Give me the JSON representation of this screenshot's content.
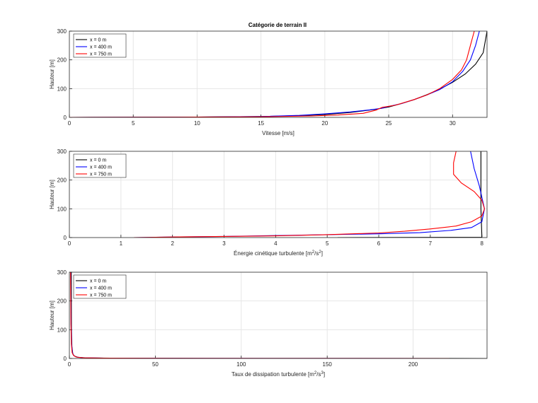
{
  "figure": {
    "title": "Catégorie de terrain II"
  },
  "chart_data": [
    {
      "type": "line",
      "title": "Catégorie de terrain II",
      "xlabel": "Vitesse   [m/s]",
      "ylabel": "Hauteur [m]",
      "xlim": [
        0,
        32.7
      ],
      "ylim": [
        0,
        300
      ],
      "xticks": [
        0,
        5,
        10,
        15,
        20,
        25,
        30
      ],
      "yticks": [
        0,
        100,
        200,
        300
      ],
      "grid": true,
      "legend": "top-left",
      "series": [
        {
          "name": "x = 0 m",
          "color": "#000000",
          "x": [
            0,
            10,
            15,
            18,
            20,
            22,
            24,
            25,
            26,
            27,
            28,
            29,
            30,
            31,
            31.8,
            32.4,
            32.7
          ],
          "y": [
            0,
            1,
            3,
            6,
            10,
            17,
            28,
            36,
            48,
            62,
            79,
            98,
            122,
            151,
            185,
            225,
            300
          ]
        },
        {
          "name": "x = 400 m",
          "color": "#0000ff",
          "x": [
            0,
            10,
            15,
            18,
            20,
            22,
            23.5,
            24.5,
            25,
            26,
            27,
            28,
            29,
            30,
            30.8,
            31.4,
            31.8,
            32.1
          ],
          "y": [
            0,
            1,
            3,
            7,
            12,
            19,
            26,
            32,
            38,
            48,
            62,
            78,
            97,
            124,
            160,
            200,
            250,
            300
          ]
        },
        {
          "name": "x = 750 m",
          "color": "#ff0000",
          "x": [
            0,
            10,
            15,
            19,
            21,
            23,
            24,
            24.5,
            25.5,
            27,
            28,
            29,
            30,
            30.7,
            31.1,
            31.4,
            31.7
          ],
          "y": [
            0,
            1,
            2,
            5,
            8,
            14,
            25,
            35,
            42,
            62,
            78,
            100,
            132,
            165,
            200,
            250,
            300
          ]
        }
      ]
    },
    {
      "type": "line",
      "xlabel": "Énergie cinétique turbulente  [m",
      "xlabel_sup1": "2",
      "xlabel_mid": "/s",
      "xlabel_sup2": "2",
      "xlabel_end": "]",
      "ylabel": "Hauteur [m]",
      "xlim": [
        0,
        8.1
      ],
      "ylim": [
        0,
        300
      ],
      "xticks": [
        0,
        1,
        2,
        3,
        4,
        5,
        6,
        7,
        8
      ],
      "yticks": [
        0,
        100,
        200,
        300
      ],
      "grid": true,
      "legend": "top-left",
      "series": [
        {
          "name": "x = 0 m",
          "color": "#000000",
          "x": [
            5.2,
            8.0,
            8.0,
            7.98,
            7.98
          ],
          "y": [
            0,
            1,
            5,
            100,
            300
          ]
        },
        {
          "name": "x = 400 m",
          "color": "#0000ff",
          "x": [
            1.25,
            2,
            3,
            4,
            5,
            6,
            6.8,
            7.4,
            7.8,
            8.0,
            8.05,
            8.0,
            7.95,
            7.85,
            7.78
          ],
          "y": [
            0,
            2,
            4,
            7,
            10,
            13,
            17,
            25,
            35,
            55,
            100,
            140,
            180,
            240,
            300
          ]
        },
        {
          "name": "x = 750 m",
          "color": "#ff0000",
          "x": [
            1.25,
            2,
            3,
            4,
            5,
            6,
            6.5,
            7,
            7.5,
            7.8,
            8.0,
            8.05,
            8.0,
            7.85,
            7.6,
            7.45,
            7.45,
            7.5
          ],
          "y": [
            0,
            2,
            4,
            6,
            10,
            16,
            22,
            30,
            40,
            55,
            75,
            100,
            130,
            160,
            190,
            220,
            260,
            300
          ]
        }
      ]
    },
    {
      "type": "line",
      "xlabel": "Taux de dissipation turbulente  [m",
      "xlabel_sup1": "2",
      "xlabel_mid": "/s",
      "xlabel_sup2": "3",
      "xlabel_end": "]",
      "ylabel": "Hauteur [m]",
      "xlim": [
        0,
        243
      ],
      "ylim": [
        0,
        300
      ],
      "xticks": [
        0,
        50,
        100,
        150,
        200
      ],
      "yticks": [
        0,
        100,
        200,
        300
      ],
      "grid": true,
      "legend": "top-left",
      "series": [
        {
          "name": "x = 0 m",
          "color": "#000000",
          "x": [
            243,
            80,
            30,
            10,
            5,
            3,
            2,
            1.5,
            1.2,
            1.1
          ],
          "y": [
            0,
            0.3,
            0.8,
            2,
            4,
            8,
            15,
            40,
            100,
            300
          ]
        },
        {
          "name": "x = 400 m",
          "color": "#0000ff",
          "x": [
            220,
            60,
            20,
            8,
            4,
            2.5,
            1.8,
            1.3,
            1,
            0.8
          ],
          "y": [
            0,
            0.4,
            1,
            2.5,
            5,
            10,
            20,
            50,
            120,
            300
          ]
        },
        {
          "name": "x = 750 m",
          "color": "#ff0000",
          "x": [
            221,
            60,
            20,
            8,
            4,
            2.5,
            1.6,
            1.2,
            0.9,
            0.7
          ],
          "y": [
            0,
            0.4,
            1,
            2.5,
            5,
            10,
            20,
            50,
            120,
            300
          ]
        }
      ]
    }
  ]
}
